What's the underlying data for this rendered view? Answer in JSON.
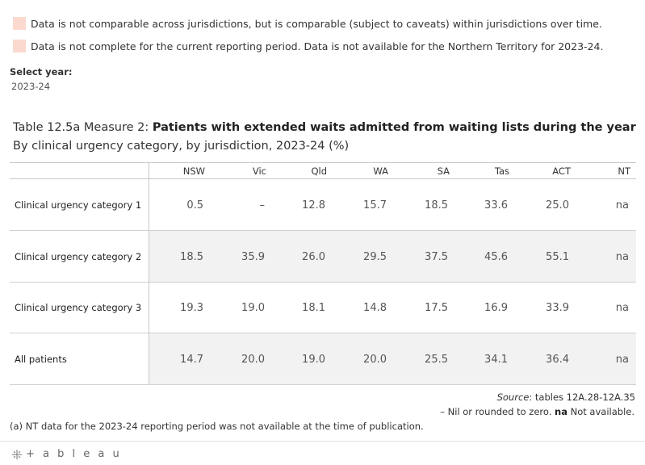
{
  "legend": [
    {
      "text": "Data is not comparable across jurisdictions, but is comparable (subject to caveats) within jurisdictions over time.",
      "color": "#fbd9cf"
    },
    {
      "text": "Data is not complete for the current reporting period. Data is not available for the Northern Territory for 2023-24.",
      "color": "#fbd9cf"
    }
  ],
  "filter": {
    "label": "Select year:",
    "value": "2023-24"
  },
  "title": {
    "prefix": "Table 12.5a Measure 2: ",
    "bold": "Patients with extended waits admitted from waiting lists during the year",
    "subtitle": "By clinical urgency category, by jurisdiction, 2023-24 (%)"
  },
  "chart_data": {
    "type": "table",
    "columns": [
      "NSW",
      "Vic",
      "Qld",
      "WA",
      "SA",
      "Tas",
      "ACT",
      "NT"
    ],
    "rows": [
      {
        "label": "Clinical urgency category 1",
        "values": [
          "0.5",
          "–",
          "12.8",
          "15.7",
          "18.5",
          "33.6",
          "25.0",
          "na"
        ]
      },
      {
        "label": "Clinical urgency category 2",
        "values": [
          "18.5",
          "35.9",
          "26.0",
          "29.5",
          "37.5",
          "45.6",
          "55.1",
          "na"
        ]
      },
      {
        "label": "Clinical urgency category 3",
        "values": [
          "19.3",
          "19.0",
          "18.1",
          "14.8",
          "17.5",
          "16.9",
          "33.9",
          "na"
        ]
      },
      {
        "label": "All patients",
        "values": [
          "14.7",
          "20.0",
          "19.0",
          "20.0",
          "25.5",
          "34.1",
          "36.4",
          "na"
        ]
      }
    ],
    "shaded_rows": [
      1,
      3
    ]
  },
  "source": {
    "label": "Source",
    "text": ": tables 12A.28-12A.35"
  },
  "notes": {
    "nil": "– Nil or rounded to zero.",
    "na_bold": "na",
    "na_text": " Not available."
  },
  "footnote": "(a) NT data for the 2023-24 reporting period was not available at the time of publication.",
  "brand": "+ a b l e a u"
}
